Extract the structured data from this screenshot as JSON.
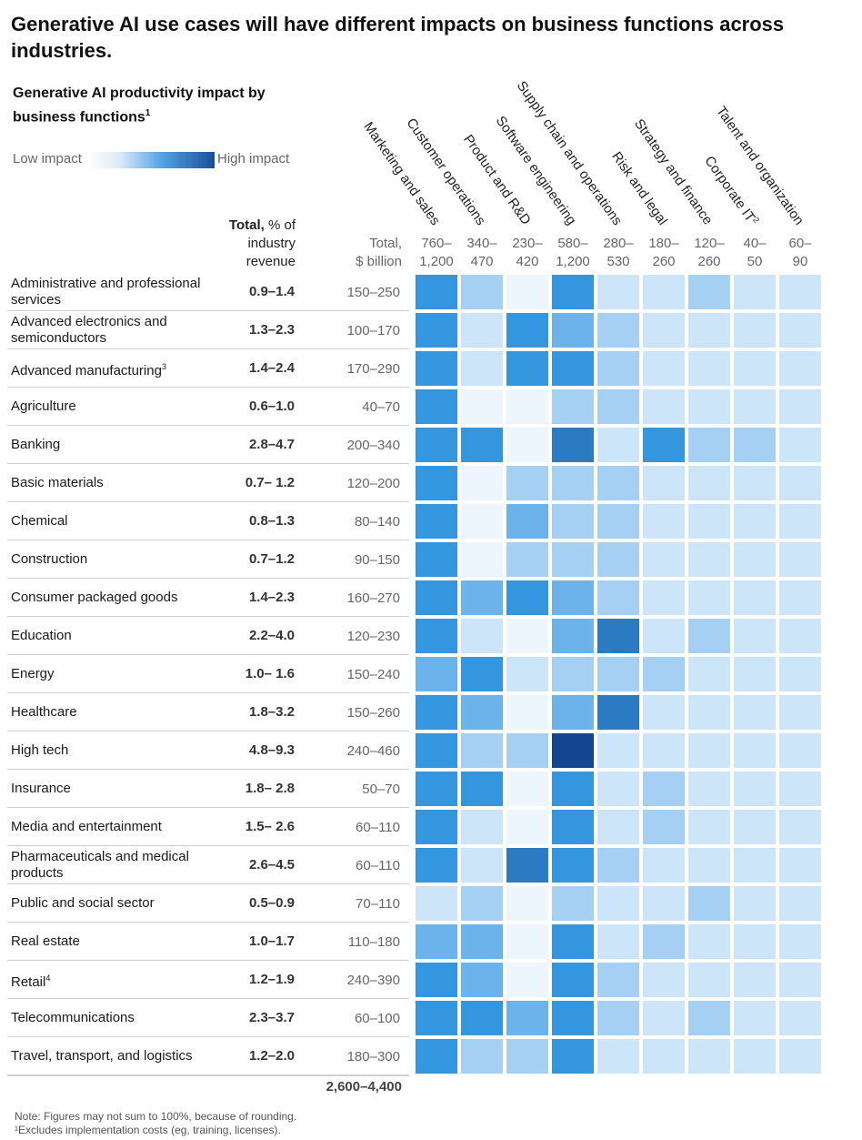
{
  "header": {
    "title": "Generative AI use cases will have different impacts on business functions across industries.",
    "subtitle": "Generative AI productivity impact by business functions",
    "subtitle_footnote": "1"
  },
  "legend": {
    "low": "Low impact",
    "high": "High impact",
    "low_color": "#ffffff",
    "high_color": "#1a4f96"
  },
  "columns": {
    "total_pct_bold": "Total,",
    "total_pct_rest": " % of industry revenue",
    "total_bn_line1": "Total,",
    "total_bn_line2": "$ billion"
  },
  "chart_data": {
    "type": "heatmap",
    "title": "Generative AI productivity impact by business functions",
    "scale": {
      "min": 0,
      "max": 6,
      "low_label": "Low impact",
      "high_label": "High impact"
    },
    "functions": [
      {
        "name": "Marketing and sales",
        "range_top": "760–",
        "range_bottom": "1,200"
      },
      {
        "name": "Customer operations",
        "range_top": "340–",
        "range_bottom": "470"
      },
      {
        "name": "Product and R&D",
        "range_top": "230–",
        "range_bottom": "420"
      },
      {
        "name": "Software engineering",
        "range_top": "580–",
        "range_bottom": "1,200"
      },
      {
        "name": "Supply chain and operations",
        "range_top": "280–",
        "range_bottom": "530"
      },
      {
        "name": "Risk and legal",
        "range_top": "180–",
        "range_bottom": "260"
      },
      {
        "name": "Strategy and finance",
        "range_top": "120–",
        "range_bottom": "260"
      },
      {
        "name": "Corporate IT",
        "footnote": "2",
        "range_top": "40–",
        "range_bottom": "50"
      },
      {
        "name": "Talent and organization",
        "range_top": "60–",
        "range_bottom": "90"
      }
    ],
    "industries": [
      {
        "name": "Administrative and professional services",
        "total_pct": "0.9–1.4",
        "total_bn": "150–250",
        "values": [
          4,
          2,
          0,
          4,
          1,
          1,
          2,
          1,
          1
        ]
      },
      {
        "name": "Advanced electronics and semiconductors",
        "total_pct": "1.3–2.3",
        "total_bn": "100–170",
        "values": [
          4,
          1,
          4,
          3,
          2,
          1,
          1,
          1,
          1
        ]
      },
      {
        "name": "Advanced manufacturing",
        "footnote": "3",
        "total_pct": "1.4–2.4",
        "total_bn": "170–290",
        "values": [
          4,
          1,
          4,
          4,
          2,
          1,
          1,
          1,
          1
        ]
      },
      {
        "name": "Agriculture",
        "total_pct": "0.6–1.0",
        "total_bn": "40–70",
        "values": [
          4,
          0,
          0,
          2,
          2,
          1,
          1,
          1,
          1
        ]
      },
      {
        "name": "Banking",
        "total_pct": "2.8–4.7",
        "total_bn": "200–340",
        "values": [
          4,
          4,
          0,
          5,
          1,
          4,
          2,
          2,
          1
        ]
      },
      {
        "name": "Basic materials",
        "total_pct": "0.7– 1.2",
        "total_bn": "120–200",
        "values": [
          4,
          0,
          2,
          2,
          2,
          1,
          1,
          1,
          1
        ]
      },
      {
        "name": "Chemical",
        "total_pct": "0.8–1.3",
        "total_bn": "80–140",
        "values": [
          4,
          0,
          3,
          2,
          2,
          1,
          1,
          1,
          1
        ]
      },
      {
        "name": "Construction",
        "total_pct": "0.7–1.2",
        "total_bn": "90–150",
        "values": [
          4,
          0,
          2,
          2,
          2,
          1,
          1,
          1,
          1
        ]
      },
      {
        "name": "Consumer packaged goods",
        "total_pct": "1.4–2.3",
        "total_bn": "160–270",
        "values": [
          4,
          3,
          4,
          3,
          2,
          1,
          1,
          1,
          1
        ]
      },
      {
        "name": "Education",
        "total_pct": "2.2–4.0",
        "total_bn": "120–230",
        "values": [
          4,
          1,
          0,
          3,
          5,
          1,
          2,
          1,
          1
        ]
      },
      {
        "name": "Energy",
        "total_pct": "1.0– 1.6",
        "total_bn": "150–240",
        "values": [
          3,
          4,
          1,
          2,
          2,
          2,
          1,
          1,
          1
        ]
      },
      {
        "name": "Healthcare",
        "total_pct": "1.8–3.2",
        "total_bn": "150–260",
        "values": [
          4,
          3,
          0,
          3,
          5,
          1,
          1,
          1,
          1
        ]
      },
      {
        "name": "High tech",
        "total_pct": "4.8–9.3",
        "total_bn": "240–460",
        "values": [
          4,
          2,
          2,
          6,
          1,
          1,
          1,
          1,
          1
        ]
      },
      {
        "name": "Insurance",
        "total_pct": "1.8– 2.8",
        "total_bn": "50–70",
        "values": [
          4,
          4,
          0,
          4,
          1,
          2,
          1,
          1,
          1
        ]
      },
      {
        "name": "Media and entertainment",
        "total_pct": "1.5– 2.6",
        "total_bn": "60–110",
        "values": [
          4,
          1,
          0,
          4,
          1,
          2,
          1,
          1,
          1
        ]
      },
      {
        "name": "Pharmaceuticals and medical products",
        "total_pct": "2.6–4.5",
        "total_bn": "60–110",
        "values": [
          4,
          1,
          5,
          4,
          2,
          1,
          1,
          1,
          1
        ]
      },
      {
        "name": "Public and social sector",
        "total_pct": "0.5–0.9",
        "total_bn": "70–110",
        "values": [
          1,
          2,
          0,
          2,
          1,
          1,
          2,
          1,
          1
        ]
      },
      {
        "name": "Real estate",
        "total_pct": "1.0–1.7",
        "total_bn": "110–180",
        "values": [
          3,
          3,
          0,
          4,
          1,
          2,
          1,
          1,
          1
        ]
      },
      {
        "name": "Retail",
        "footnote": "4",
        "total_pct": "1.2–1.9",
        "total_bn": "240–390",
        "values": [
          4,
          3,
          0,
          4,
          2,
          1,
          1,
          1,
          1
        ]
      },
      {
        "name": "Telecommunications",
        "total_pct": "2.3–3.7",
        "total_bn": "60–100",
        "values": [
          4,
          4,
          3,
          4,
          2,
          1,
          2,
          1,
          1
        ]
      },
      {
        "name": "Travel, transport, and logistics",
        "total_pct": "1.2–2.0",
        "total_bn": "180–300",
        "values": [
          4,
          2,
          2,
          4,
          1,
          1,
          1,
          1,
          1
        ]
      }
    ],
    "grand_total": "2,600–4,400"
  },
  "colors": {
    "scale": [
      "#eef6fd",
      "#cde5f9",
      "#a5d0f4",
      "#6cb3ec",
      "#3596e0",
      "#2b7bc2",
      "#14468f"
    ],
    "row_line": "#cfcfcf"
  },
  "notes": {
    "line1": "Note: Figures may not sum to 100%, because of rounding.",
    "line2": "¹Excludes implementation costs (eg, training, licenses)."
  }
}
